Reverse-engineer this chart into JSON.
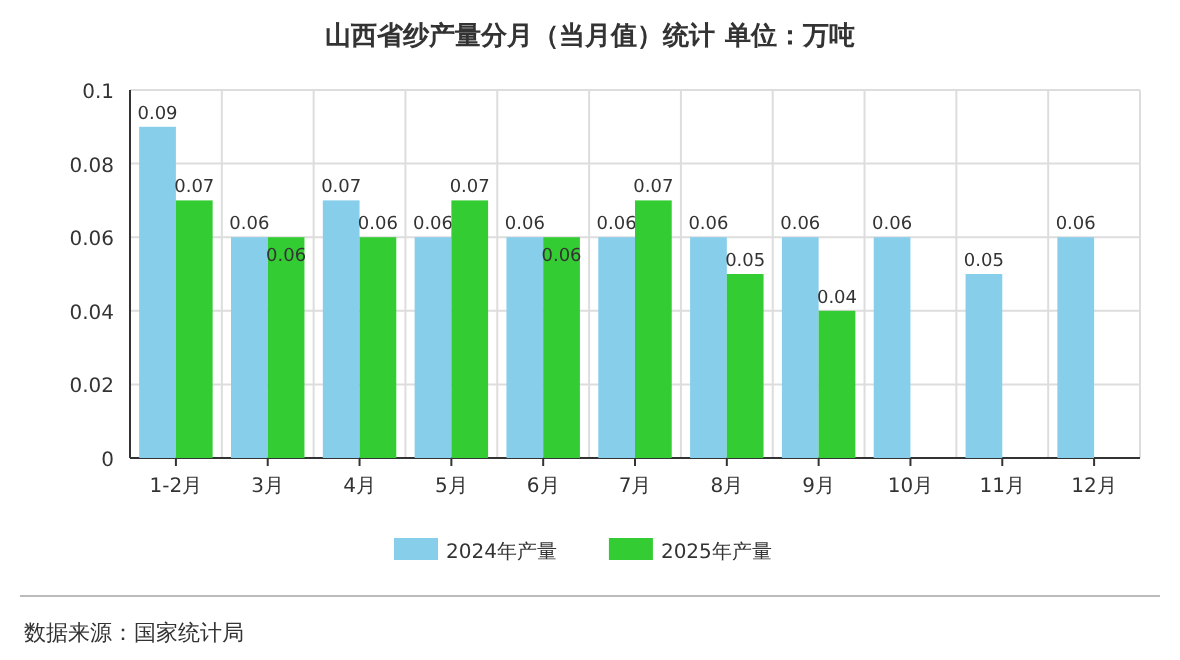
{
  "chart_data": {
    "type": "bar",
    "title": "山西省纱产量分月（当月值）统计 单位：万吨",
    "categories": [
      "1-2月",
      "3月",
      "4月",
      "5月",
      "6月",
      "7月",
      "8月",
      "9月",
      "10月",
      "11月",
      "12月"
    ],
    "series": [
      {
        "name": "2024年产量",
        "color": "#87ceeb",
        "values": [
          0.09,
          0.06,
          0.07,
          0.06,
          0.06,
          0.06,
          0.06,
          0.06,
          0.06,
          0.05,
          0.06
        ]
      },
      {
        "name": "2025年产量",
        "color": "#33cc33",
        "values": [
          0.07,
          0.06,
          0.06,
          0.07,
          0.06,
          0.07,
          0.05,
          0.04,
          null,
          null,
          null
        ]
      }
    ],
    "ylim": [
      0,
      0.1
    ],
    "yticks": [
      0,
      0.02,
      0.04,
      0.06,
      0.08,
      0.1
    ],
    "grid": true,
    "legend": "bottom",
    "data_labels": true,
    "annotations": [
      "数据来源：国家统计局"
    ]
  }
}
